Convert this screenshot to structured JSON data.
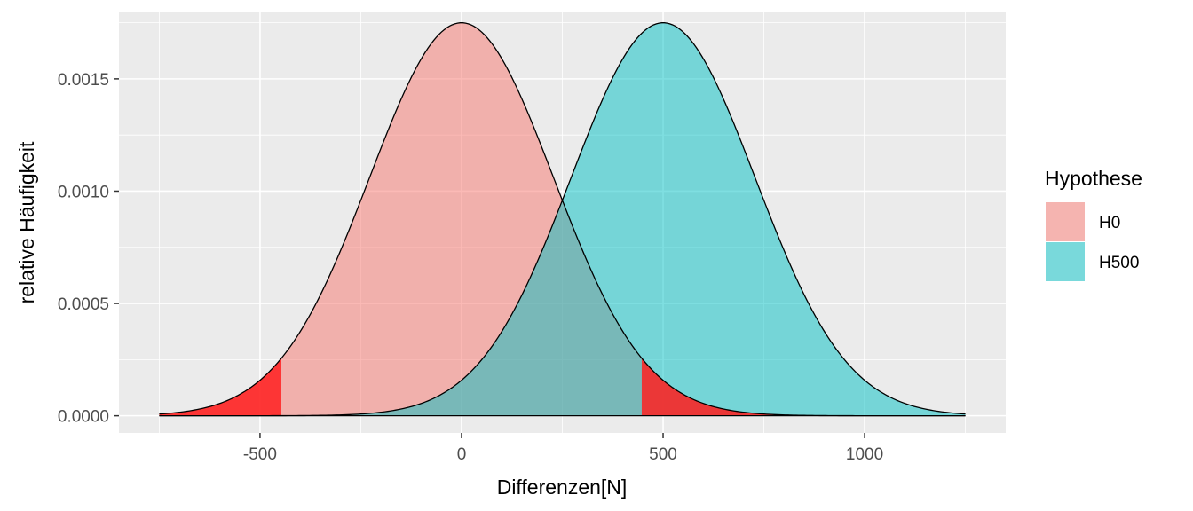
{
  "chart_data": {
    "type": "area",
    "title": "",
    "xlabel": "Differenzen[N]",
    "ylabel": "relative Häufigkeit",
    "xlim": [
      -850,
      1350
    ],
    "ylim": [
      -7.65e-05,
      0.0017958
    ],
    "x_ticks": [
      -500,
      0,
      500,
      1000
    ],
    "x_tick_labels": [
      "-500",
      "0",
      "500",
      "1000"
    ],
    "y_ticks": [
      0.0,
      0.0005,
      0.001,
      0.0015
    ],
    "y_tick_labels": [
      "0.0000",
      "0.0005",
      "0.0010",
      "0.0015"
    ],
    "x_range": [
      -750,
      1250
    ],
    "grid": true,
    "legend": {
      "title": "Hypothese",
      "position": "right"
    },
    "series": [
      {
        "name": "H0",
        "distribution": "normal",
        "mean": 0,
        "sd": 228,
        "fill": "#F8766D",
        "opacity": 0.5
      },
      {
        "name": "H500",
        "distribution": "normal",
        "mean": 500,
        "sd": 228,
        "fill": "#00BFC4",
        "opacity": 0.5
      }
    ],
    "rejection_regions": [
      {
        "series": "H0",
        "from": -750,
        "to": -447,
        "fill": "#FF2020"
      },
      {
        "series": "H0",
        "from": 447,
        "to": 1250,
        "fill": "#FF2020"
      }
    ]
  }
}
